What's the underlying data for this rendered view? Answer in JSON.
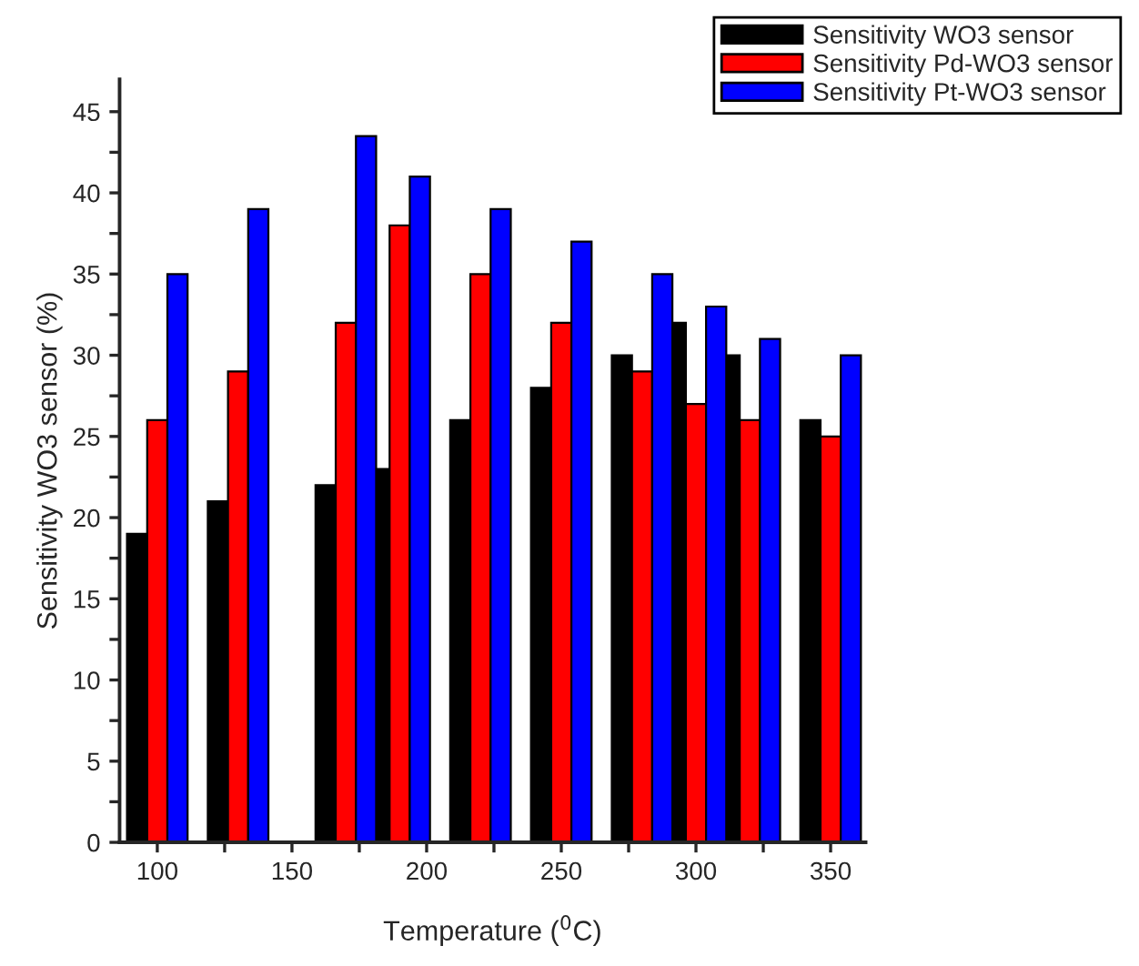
{
  "chart_data": {
    "type": "bar",
    "xlabel": "Temperature ($^{0}$C)",
    "ylabel": "Sensitivity WO3 sensor (%)",
    "series": [
      {
        "name": "Sensitivity WO3 sensor",
        "color": "#000000",
        "x": [
          92.5,
          122.5,
          162.5,
          184,
          212.5,
          242.5,
          272.5,
          292.5,
          312.5,
          342.5
        ],
        "values": [
          19,
          21,
          22,
          23,
          26,
          28,
          30,
          32,
          30,
          26
        ]
      },
      {
        "name": "Sensitivity Pd-WO3 sensor",
        "color": "#ff0000",
        "x": [
          100,
          130,
          170,
          190,
          220,
          250,
          280,
          300,
          320,
          350
        ],
        "values": [
          26,
          29,
          32,
          38,
          35,
          32,
          29,
          27,
          26,
          25
        ]
      },
      {
        "name": "Sensitivity Pt-WO3 sensor",
        "color": "#0000ff",
        "x": [
          107.5,
          137.5,
          177.5,
          197.5,
          227.5,
          257.5,
          287.5,
          307.5,
          327.5,
          357.5
        ],
        "values": [
          35,
          39,
          43.5,
          41,
          39,
          37,
          35,
          33,
          31,
          30
        ]
      }
    ],
    "xlim": [
      86,
      363
    ],
    "xticks": [
      100,
      {
        "value": 125,
        "label": null
      },
      150,
      {
        "value": 175,
        "label": null
      },
      200,
      {
        "value": 225,
        "label": null
      },
      250,
      {
        "value": 275,
        "label": null
      },
      300,
      {
        "value": 325,
        "label": null
      },
      350
    ],
    "ylim": [
      0,
      47
    ],
    "yticks": [
      0,
      {
        "value": 2.5,
        "label": null
      },
      5,
      {
        "value": 7.5,
        "label": null
      },
      10,
      {
        "value": 12.5,
        "label": null
      },
      15,
      {
        "value": 17.5,
        "label": null
      },
      20,
      {
        "value": 22.5,
        "label": null
      },
      25,
      {
        "value": 27.5,
        "label": null
      },
      30,
      {
        "value": 32.5,
        "label": null
      },
      35,
      {
        "value": 37.5,
        "label": null
      },
      40,
      {
        "value": 42.5,
        "label": null
      },
      45
    ],
    "legend": "top right",
    "grid": false
  }
}
